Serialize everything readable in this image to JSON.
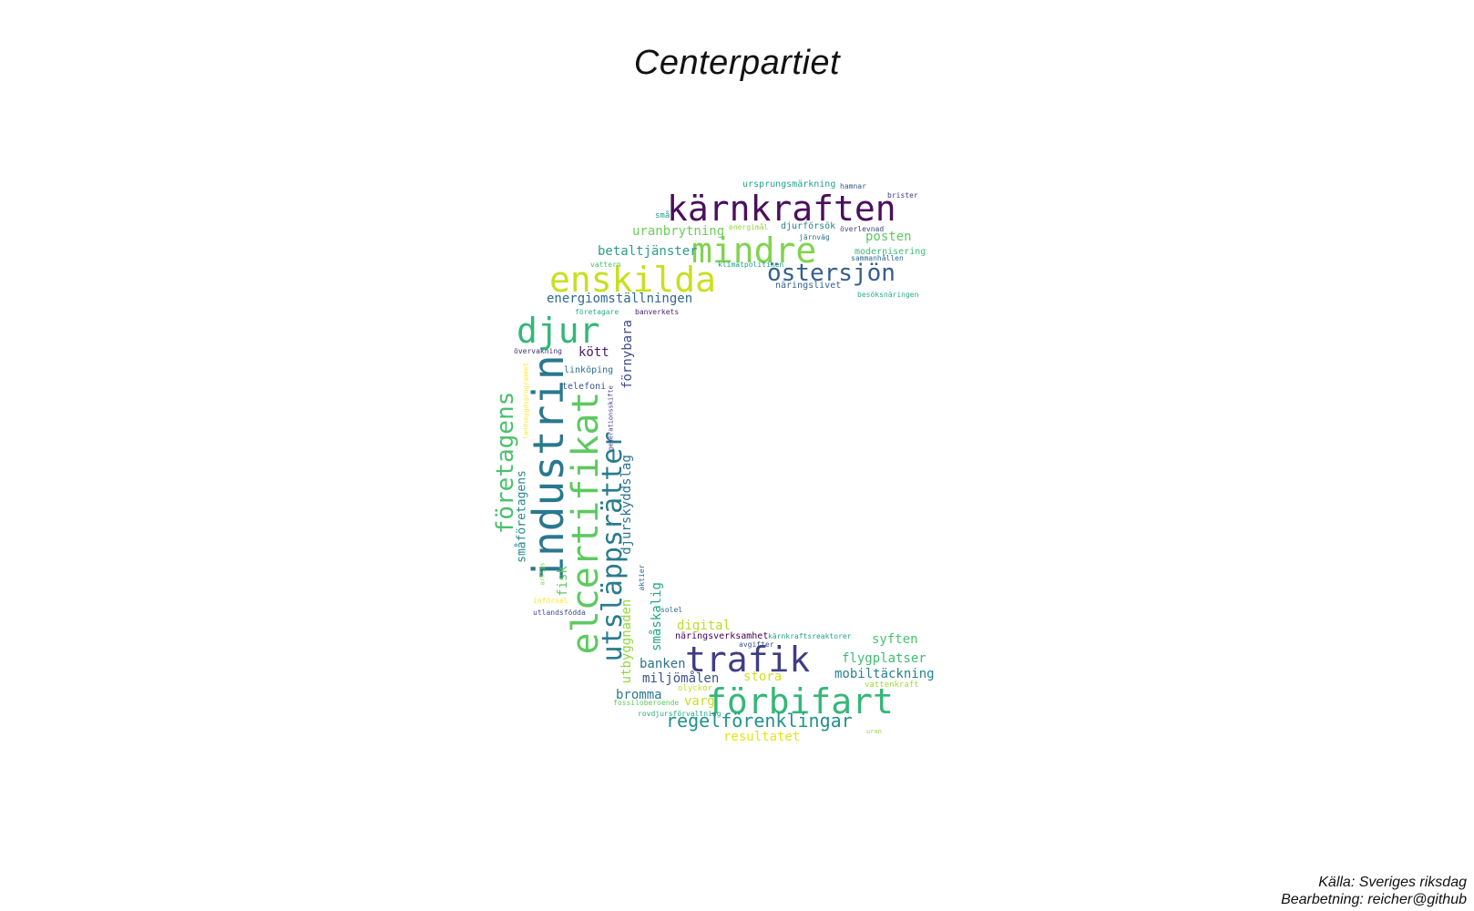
{
  "title": "Centerpartiet",
  "source": "Källa: Sveriges riksdag",
  "processing": "Bearbetning: reicher@github",
  "words": [
    {
      "text": "kärnkraften",
      "color": "#4b0f5c"
    },
    {
      "text": "mindre",
      "color": "#7fd34e"
    },
    {
      "text": "enskilda",
      "color": "#c7e020"
    },
    {
      "text": "östersjön",
      "color": "#345f8d"
    },
    {
      "text": "djur",
      "color": "#35b779"
    },
    {
      "text": "industrin",
      "color": "#2a788e"
    },
    {
      "text": "elcertifikat",
      "color": "#5ec962"
    },
    {
      "text": "företagens",
      "color": "#4ac16d"
    },
    {
      "text": "utsläppsrätter",
      "color": "#2a7b8e"
    },
    {
      "text": "trafik",
      "color": "#413d84"
    },
    {
      "text": "förbifart",
      "color": "#35b779"
    },
    {
      "text": "regelförenklingar",
      "color": "#21918c"
    },
    {
      "text": "ursprungsmärkning",
      "color": "#22a884"
    },
    {
      "text": "hamnar",
      "color": "#3b528b"
    },
    {
      "text": "brister",
      "color": "#443983"
    },
    {
      "text": "små",
      "color": "#1fa187"
    },
    {
      "text": "uranbrytning",
      "color": "#6ece58"
    },
    {
      "text": "energimål",
      "color": "#95d840"
    },
    {
      "text": "djurförsök",
      "color": "#26828e"
    },
    {
      "text": "överlevnad",
      "color": "#414487"
    },
    {
      "text": "järnväg",
      "color": "#2c728e"
    },
    {
      "text": "posten",
      "color": "#5ec962"
    },
    {
      "text": "betaltjänster",
      "color": "#2a9d8a"
    },
    {
      "text": "modernisering",
      "color": "#3fbc73"
    },
    {
      "text": "sammanhållen",
      "color": "#31688e"
    },
    {
      "text": "vattern",
      "color": "#4ac16d"
    },
    {
      "text": "klimatpolitiken",
      "color": "#1f9e89"
    },
    {
      "text": "näringslivet",
      "color": "#355f8d"
    },
    {
      "text": "besöksnäringen",
      "color": "#29af7f"
    },
    {
      "text": "energiomställningen",
      "color": "#31688e"
    },
    {
      "text": "företagare",
      "color": "#2ab07f"
    },
    {
      "text": "banverkets",
      "color": "#482576"
    },
    {
      "text": "förnybara",
      "color": "#3e4a89"
    },
    {
      "text": "kött",
      "color": "#481a6c"
    },
    {
      "text": "övervakning",
      "color": "#472d7b"
    },
    {
      "text": "linköping",
      "color": "#2d708e"
    },
    {
      "text": "landsbygdsprogrammet",
      "color": "#fde725"
    },
    {
      "text": "telefoni",
      "color": "#3b528b"
    },
    {
      "text": "generationsskifte",
      "color": "#433e85"
    },
    {
      "text": "djurskyddslag",
      "color": "#2c728e"
    },
    {
      "text": "småföretagens",
      "color": "#23888e"
    },
    {
      "text": "fisk",
      "color": "#5ec962"
    },
    {
      "text": "arktis",
      "color": "#86d549"
    },
    {
      "text": "införsel",
      "color": "#fde725"
    },
    {
      "text": "aktier",
      "color": "#2f6c8e"
    },
    {
      "text": "småskalig",
      "color": "#22a785"
    },
    {
      "text": "utbyggnaden",
      "color": "#95d840"
    },
    {
      "text": "utlandsfödda",
      "color": "#3e4a89"
    },
    {
      "text": "solel",
      "color": "#31688e"
    },
    {
      "text": "digital",
      "color": "#b8de29"
    },
    {
      "text": "näringsverksamhet",
      "color": "#440154"
    },
    {
      "text": "kärnkraftsreaktorer",
      "color": "#20a386"
    },
    {
      "text": "avgifter",
      "color": "#3b528b"
    },
    {
      "text": "syften",
      "color": "#4ac16d"
    },
    {
      "text": "flygplatser",
      "color": "#3fbc73"
    },
    {
      "text": "banken",
      "color": "#2c728e"
    },
    {
      "text": "stora",
      "color": "#d2e21b"
    },
    {
      "text": "mobiltäckning",
      "color": "#26828e"
    },
    {
      "text": "miljömålen",
      "color": "#3b528b"
    },
    {
      "text": "olyckor",
      "color": "#c2df23"
    },
    {
      "text": "vattenkraft",
      "color": "#a0da39"
    },
    {
      "text": "bromma",
      "color": "#2a788e"
    },
    {
      "text": "varg",
      "color": "#c7e020"
    },
    {
      "text": "fossiloberoende",
      "color": "#5ec962"
    },
    {
      "text": "rovdjursförvaltning",
      "color": "#25ab82"
    },
    {
      "text": "uran",
      "color": "#95d840"
    },
    {
      "text": "resultatet",
      "color": "#e5e419"
    }
  ]
}
